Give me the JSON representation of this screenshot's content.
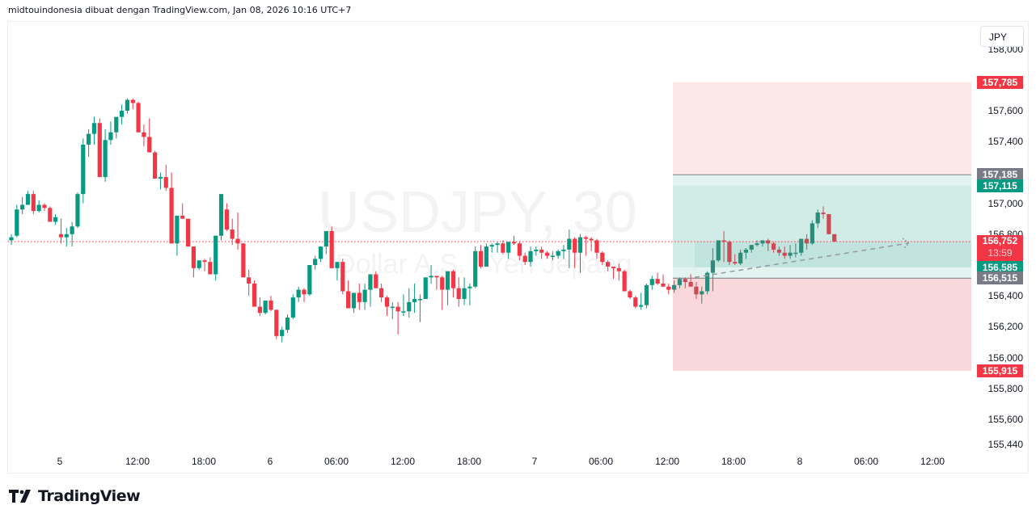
{
  "header": {
    "attribution": "midtouindonesia dibuat dengan TradingView.com, Jan 08, 2026 10:16 UTC+7"
  },
  "watermark": {
    "symbol": "USDJPY, 30",
    "description": "Dollar A.S. / Yen Jepang"
  },
  "currency_button": {
    "label": "JPY"
  },
  "logo": {
    "text": "TradingView"
  },
  "colors": {
    "up": "#089981",
    "down": "#f23645",
    "neutral_tag": "#787b86",
    "stop_zone": "#fde8e9",
    "target_zone": "#d1ece7"
  },
  "price_scale": {
    "ticks": [
      "158,000",
      "157,600",
      "157,400",
      "157,000",
      "156,800",
      "156,400",
      "156,200",
      "156,000",
      "155,800",
      "155,600",
      "155,440"
    ],
    "tags": {
      "stop_upper": "157,785",
      "line_upper": "157,185",
      "target_upper": "157,115",
      "last_price": "156,752",
      "countdown": "13:59",
      "target_lower": "156,585",
      "line_lower": "156,515",
      "stop_lower": "155,915"
    }
  },
  "time_axis": {
    "labels": [
      "5",
      "12:00",
      "18:00",
      "6",
      "06:00",
      "12:00",
      "18:00",
      "7",
      "06:00",
      "12:00",
      "18:00",
      "8",
      "06:00",
      "12:00"
    ]
  },
  "chart_data": {
    "type": "candlestick",
    "title": "USDJPY, 30",
    "subtitle": "Dollar A.S. / Yen Jepang",
    "interval": "30m",
    "xlabel": "",
    "ylabel": "JPY",
    "ylim": [
      155440,
      158000
    ],
    "x_ticks": [
      "5",
      "12:00",
      "18:00",
      "6",
      "06:00",
      "12:00",
      "18:00",
      "7",
      "06:00",
      "12:00",
      "18:00",
      "8",
      "06:00",
      "12:00"
    ],
    "y_ticks": [
      155440,
      155600,
      155800,
      156000,
      156200,
      156400,
      156800,
      157000,
      157400,
      157600,
      158000
    ],
    "last_price": 156752,
    "annotations": {
      "long_position_box": {
        "stop_low": 155915,
        "entry_line_low": 156515,
        "target_low": 156585,
        "target_high": 157115,
        "entry_line_high": 157185,
        "stop_high": 157785
      },
      "dashed_trend_arrow": {
        "from": 156515,
        "to": 156752
      }
    },
    "candles": [
      [
        156760,
        156800,
        156730,
        156780
      ],
      [
        156790,
        156990,
        156780,
        156960
      ],
      [
        156960,
        157040,
        156930,
        156990
      ],
      [
        156990,
        157080,
        157000,
        157060
      ],
      [
        157060,
        157080,
        156930,
        156950
      ],
      [
        156950,
        157020,
        156940,
        156990
      ],
      [
        156990,
        157000,
        156950,
        156970
      ],
      [
        156970,
        156980,
        156880,
        156880
      ],
      [
        156880,
        156930,
        156860,
        156910
      ],
      [
        156800,
        156900,
        156740,
        156780
      ],
      [
        156780,
        156840,
        156720,
        156800
      ],
      [
        156800,
        156880,
        156720,
        156850
      ],
      [
        156850,
        157070,
        156840,
        157060
      ],
      [
        157060,
        157420,
        157000,
        157380
      ],
      [
        157380,
        157480,
        157300,
        157450
      ],
      [
        157450,
        157560,
        157380,
        157520
      ],
      [
        157520,
        157550,
        157170,
        157170
      ],
      [
        157170,
        157480,
        157140,
        157410
      ],
      [
        157410,
        157530,
        157380,
        157460
      ],
      [
        157460,
        157550,
        157420,
        157560
      ],
      [
        157560,
        157640,
        157510,
        157600
      ],
      [
        157600,
        157680,
        157580,
        157670
      ],
      [
        157670,
        157680,
        157610,
        157650
      ],
      [
        157650,
        157660,
        157460,
        157460
      ],
      [
        157460,
        157510,
        157370,
        157430
      ],
      [
        157430,
        157550,
        157380,
        157330
      ],
      [
        157330,
        157340,
        157160,
        157160
      ],
      [
        157160,
        157200,
        157090,
        157170
      ],
      [
        157170,
        157250,
        157080,
        157100
      ],
      [
        157100,
        157200,
        156740,
        156740
      ],
      [
        156740,
        156910,
        156660,
        156920
      ],
      [
        156920,
        157000,
        156900,
        156900
      ],
      [
        156900,
        156880,
        156720,
        156720
      ],
      [
        156720,
        156720,
        156520,
        156580
      ],
      [
        156580,
        156630,
        156570,
        156630
      ],
      [
        156630,
        156640,
        156560,
        156620
      ],
      [
        156620,
        156650,
        156550,
        156540
      ],
      [
        156540,
        156780,
        156500,
        156790
      ],
      [
        156790,
        157020,
        156760,
        157060
      ],
      [
        156960,
        157000,
        156820,
        156830
      ],
      [
        156830,
        156900,
        156730,
        156770
      ],
      [
        156770,
        156940,
        156700,
        156740
      ],
      [
        156740,
        156740,
        156520,
        156520
      ],
      [
        156520,
        156570,
        156400,
        156480
      ],
      [
        156480,
        156500,
        156380,
        156330
      ],
      [
        156330,
        156390,
        156270,
        156290
      ],
      [
        156290,
        156360,
        156280,
        156370
      ],
      [
        156370,
        156400,
        156300,
        156310
      ],
      [
        156310,
        156310,
        156120,
        156140
      ],
      [
        156140,
        156200,
        156100,
        156180
      ],
      [
        156180,
        156280,
        156160,
        156260
      ],
      [
        156260,
        156410,
        156250,
        156390
      ],
      [
        156390,
        156460,
        156360,
        156440
      ],
      [
        156440,
        156450,
        156360,
        156410
      ],
      [
        156410,
        156590,
        156400,
        156600
      ],
      [
        156600,
        156660,
        156570,
        156640
      ],
      [
        156640,
        156710,
        156620,
        156720
      ],
      [
        156720,
        156780,
        156670,
        156820
      ],
      [
        156820,
        156850,
        156600,
        156580
      ],
      [
        156580,
        156620,
        156500,
        156620
      ],
      [
        156620,
        156640,
        156410,
        156430
      ],
      [
        156430,
        156500,
        156340,
        156320
      ],
      [
        156320,
        156390,
        156290,
        156420
      ],
      [
        156420,
        156480,
        156310,
        156360
      ],
      [
        156360,
        156480,
        156310,
        156440
      ],
      [
        156440,
        156520,
        156330,
        156540
      ],
      [
        156540,
        156560,
        156450,
        156450
      ],
      [
        156450,
        156480,
        156360,
        156390
      ],
      [
        156390,
        156400,
        156270,
        156330
      ],
      [
        156330,
        156360,
        156250,
        156330
      ],
      [
        156330,
        156360,
        156150,
        156300
      ],
      [
        156300,
        156410,
        156270,
        156300
      ],
      [
        156300,
        156450,
        156260,
        156360
      ],
      [
        156360,
        156480,
        156290,
        156380
      ],
      [
        156380,
        156410,
        156230,
        156380
      ],
      [
        156380,
        156500,
        156380,
        156520
      ],
      [
        156520,
        156600,
        156480,
        156530
      ],
      [
        156530,
        156530,
        156440,
        156520
      ],
      [
        156520,
        156530,
        156310,
        156440
      ],
      [
        156440,
        156510,
        156340,
        156560
      ],
      [
        156560,
        156570,
        156390,
        156450
      ],
      [
        156450,
        156520,
        156330,
        156380
      ],
      [
        156380,
        156520,
        156340,
        156450
      ],
      [
        156450,
        156480,
        156340,
        156460
      ],
      [
        156460,
        156720,
        156450,
        156690
      ],
      [
        156690,
        156730,
        156580,
        156590
      ],
      [
        156590,
        156740,
        156590,
        156720
      ],
      [
        156720,
        156740,
        156680,
        156730
      ],
      [
        156730,
        156750,
        156680,
        156740
      ],
      [
        156740,
        156760,
        156670,
        156680
      ],
      [
        156680,
        156750,
        156640,
        156750
      ],
      [
        156750,
        156790,
        156730,
        156740
      ],
      [
        156740,
        156750,
        156630,
        156660
      ],
      [
        156660,
        156680,
        156600,
        156620
      ],
      [
        156620,
        156720,
        156590,
        156690
      ],
      [
        156690,
        156720,
        156660,
        156700
      ],
      [
        156700,
        156720,
        156640,
        156680
      ],
      [
        156680,
        156690,
        156640,
        156660
      ],
      [
        156660,
        156690,
        156630,
        156660
      ],
      [
        156660,
        156700,
        156640,
        156690
      ],
      [
        156690,
        156730,
        156640,
        156700
      ],
      [
        156700,
        156830,
        156580,
        156770
      ],
      [
        156770,
        156780,
        156580,
        156680
      ],
      [
        156680,
        156800,
        156550,
        156780
      ],
      [
        156780,
        156790,
        156660,
        156770
      ],
      [
        156770,
        156780,
        156690,
        156760
      ],
      [
        156760,
        156770,
        156640,
        156680
      ],
      [
        156680,
        156690,
        156600,
        156620
      ],
      [
        156620,
        156630,
        156560,
        156590
      ],
      [
        156590,
        156590,
        156510,
        156580
      ],
      [
        156580,
        156610,
        156500,
        156560
      ],
      [
        156560,
        156570,
        156430,
        156430
      ],
      [
        156430,
        156440,
        156380,
        156390
      ],
      [
        156390,
        156400,
        156320,
        156330
      ],
      [
        156330,
        156420,
        156310,
        156340
      ],
      [
        156340,
        156480,
        156320,
        156470
      ],
      [
        156470,
        156530,
        156440,
        156510
      ],
      [
        156510,
        156550,
        156470,
        156480
      ],
      [
        156480,
        156540,
        156460,
        156460
      ],
      [
        156460,
        156480,
        156410,
        156440
      ],
      [
        156440,
        156500,
        156420,
        156470
      ],
      [
        156470,
        156520,
        156450,
        156510
      ],
      [
        156510,
        156520,
        156450,
        156490
      ],
      [
        156490,
        156540,
        156460,
        156460
      ],
      [
        156460,
        156490,
        156380,
        156410
      ],
      [
        156410,
        156460,
        156350,
        156430
      ],
      [
        156430,
        156560,
        156410,
        156550
      ],
      [
        156550,
        156710,
        156430,
        156630
      ],
      [
        156630,
        156720,
        156620,
        156760
      ],
      [
        156760,
        156820,
        156620,
        156750
      ],
      [
        156750,
        156760,
        156600,
        156620
      ],
      [
        156620,
        156670,
        156600,
        156610
      ],
      [
        156610,
        156700,
        156600,
        156680
      ],
      [
        156680,
        156710,
        156640,
        156700
      ],
      [
        156700,
        156730,
        156680,
        156730
      ],
      [
        156730,
        156760,
        156720,
        156740
      ],
      [
        156740,
        156760,
        156720,
        156760
      ],
      [
        156760,
        156770,
        156690,
        156740
      ],
      [
        156740,
        156750,
        156680,
        156700
      ],
      [
        156700,
        156720,
        156660,
        156680
      ],
      [
        156680,
        156720,
        156640,
        156660
      ],
      [
        156660,
        156730,
        156640,
        156680
      ],
      [
        156680,
        156740,
        156650,
        156680
      ],
      [
        156680,
        156770,
        156660,
        156770
      ],
      [
        156770,
        156800,
        156700,
        156740
      ],
      [
        156740,
        156890,
        156730,
        156870
      ],
      [
        156870,
        156960,
        156840,
        156940
      ],
      [
        156940,
        156980,
        156900,
        156930
      ],
      [
        156930,
        156930,
        156800,
        156800
      ],
      [
        156800,
        156800,
        156750,
        156752
      ]
    ]
  }
}
